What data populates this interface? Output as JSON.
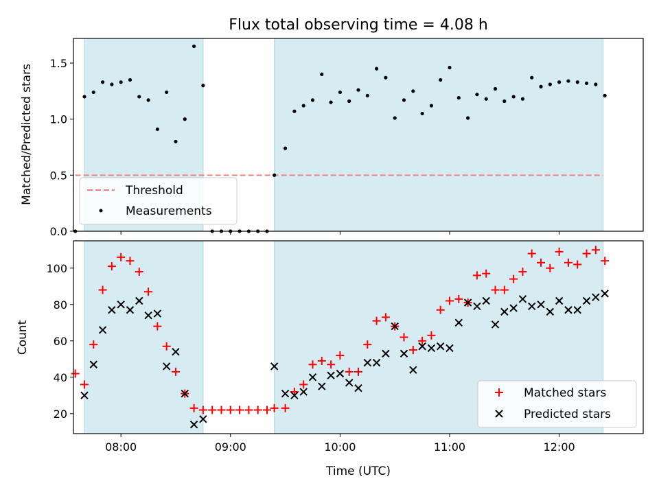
{
  "chart_data": [
    {
      "type": "scatter",
      "title": "Flux total observing time = 4.08 h",
      "xlabel": "",
      "ylabel": "Matched/Predicted stars",
      "xlim": [
        "07:34",
        "12:46"
      ],
      "ylim": [
        0,
        1.72
      ],
      "yticks": [
        0.0,
        0.5,
        1.0,
        1.5
      ],
      "ytick_labels": [
        "0.0",
        "0.5",
        "1.0",
        "1.5"
      ],
      "xticks": [
        "08:00",
        "09:00",
        "10:00",
        "11:00",
        "12:00"
      ],
      "shaded_intervals": [
        [
          "07:40",
          "08:45"
        ],
        [
          "09:24",
          "12:24"
        ]
      ],
      "threshold": {
        "name": "Threshold",
        "value": 0.5,
        "x_range": [
          "07:35",
          "12:24"
        ],
        "color": "#f08080"
      },
      "series": [
        {
          "name": "Measurements",
          "color": "#000000",
          "x": [
            "07:35",
            "07:40",
            "07:45",
            "07:50",
            "07:55",
            "08:00",
            "08:05",
            "08:10",
            "08:15",
            "08:20",
            "08:25",
            "08:30",
            "08:35",
            "08:40",
            "08:45",
            "08:50",
            "08:55",
            "09:00",
            "09:05",
            "09:10",
            "09:15",
            "09:20",
            "09:24",
            "09:30",
            "09:35",
            "09:40",
            "09:45",
            "09:50",
            "09:55",
            "10:00",
            "10:05",
            "10:10",
            "10:15",
            "10:20",
            "10:25",
            "10:30",
            "10:35",
            "10:40",
            "10:45",
            "10:50",
            "10:55",
            "11:00",
            "11:05",
            "11:10",
            "11:15",
            "11:20",
            "11:25",
            "11:30",
            "11:35",
            "11:40",
            "11:45",
            "11:50",
            "11:55",
            "12:00",
            "12:05",
            "12:10",
            "12:15",
            "12:20",
            "12:25"
          ],
          "y": [
            0.0,
            1.2,
            1.24,
            1.33,
            1.31,
            1.33,
            1.35,
            1.2,
            1.17,
            0.91,
            1.24,
            0.8,
            1.0,
            1.65,
            1.3,
            0.0,
            0.0,
            0.0,
            0.0,
            0.0,
            0.0,
            0.0,
            0.5,
            0.74,
            1.07,
            1.12,
            1.17,
            1.4,
            1.15,
            1.24,
            1.16,
            1.26,
            1.21,
            1.45,
            1.37,
            1.01,
            1.17,
            1.25,
            1.05,
            1.12,
            1.35,
            1.46,
            1.19,
            1.01,
            1.22,
            1.18,
            1.27,
            1.16,
            1.2,
            1.18,
            1.37,
            1.29,
            1.31,
            1.33,
            1.34,
            1.33,
            1.32,
            1.31,
            1.21
          ]
        }
      ]
    },
    {
      "type": "scatter",
      "title": "",
      "xlabel": "Time (UTC)",
      "ylabel": "Count",
      "xlim": [
        "07:34",
        "12:46"
      ],
      "ylim": [
        9,
        115
      ],
      "yticks": [
        20,
        40,
        60,
        80,
        100
      ],
      "ytick_labels": [
        "20",
        "40",
        "60",
        "80",
        "100"
      ],
      "xticks": [
        "08:00",
        "09:00",
        "10:00",
        "11:00",
        "12:00"
      ],
      "shaded_intervals": [
        [
          "07:40",
          "08:45"
        ],
        [
          "09:24",
          "12:24"
        ]
      ],
      "series": [
        {
          "name": "Matched stars",
          "marker": "+",
          "color": "#ff0000",
          "x": [
            "07:35",
            "07:40",
            "07:45",
            "07:50",
            "07:55",
            "08:00",
            "08:05",
            "08:10",
            "08:15",
            "08:20",
            "08:25",
            "08:30",
            "08:35",
            "08:40",
            "08:45",
            "08:50",
            "08:55",
            "09:00",
            "09:05",
            "09:10",
            "09:15",
            "09:20",
            "09:24",
            "09:30",
            "09:35",
            "09:40",
            "09:45",
            "09:50",
            "09:55",
            "10:00",
            "10:05",
            "10:10",
            "10:15",
            "10:20",
            "10:25",
            "10:30",
            "10:35",
            "10:40",
            "10:45",
            "10:50",
            "10:55",
            "11:00",
            "11:05",
            "11:10",
            "11:15",
            "11:20",
            "11:25",
            "11:30",
            "11:35",
            "11:40",
            "11:45",
            "11:50",
            "11:55",
            "12:00",
            "12:05",
            "12:10",
            "12:15",
            "12:20",
            "12:25"
          ],
          "y": [
            42,
            36,
            58,
            88,
            101,
            106,
            104,
            98,
            87,
            68,
            57,
            43,
            31,
            23,
            22,
            22,
            22,
            22,
            22,
            22,
            22,
            22,
            23,
            23,
            32,
            36,
            47,
            49,
            47,
            52,
            43,
            43,
            58,
            71,
            73,
            68,
            62,
            55,
            60,
            63,
            77,
            82,
            83,
            81,
            96,
            97,
            88,
            88,
            94,
            98,
            108,
            103,
            100,
            109,
            103,
            102,
            108,
            110,
            104
          ]
        },
        {
          "name": "Predicted stars",
          "marker": "x",
          "color": "#000000",
          "x": [
            "07:40",
            "07:45",
            "07:50",
            "07:55",
            "08:00",
            "08:05",
            "08:10",
            "08:15",
            "08:20",
            "08:25",
            "08:30",
            "08:35",
            "08:40",
            "08:45",
            "09:24",
            "09:30",
            "09:35",
            "09:40",
            "09:45",
            "09:50",
            "09:55",
            "10:00",
            "10:05",
            "10:10",
            "10:15",
            "10:20",
            "10:25",
            "10:30",
            "10:35",
            "10:40",
            "10:45",
            "10:50",
            "10:55",
            "11:00",
            "11:05",
            "11:10",
            "11:15",
            "11:20",
            "11:25",
            "11:30",
            "11:35",
            "11:40",
            "11:45",
            "11:50",
            "11:55",
            "12:00",
            "12:05",
            "12:10",
            "12:15",
            "12:20",
            "12:25"
          ],
          "y": [
            30,
            47,
            66,
            77,
            80,
            77,
            82,
            74,
            75,
            46,
            54,
            31,
            14,
            17,
            46,
            31,
            30,
            32,
            40,
            35,
            41,
            42,
            37,
            34,
            48,
            48,
            53,
            68,
            53,
            44,
            57,
            56,
            57,
            56,
            70,
            81,
            79,
            82,
            69,
            76,
            78,
            83,
            79,
            80,
            76,
            82,
            77,
            77,
            82,
            84,
            86
          ]
        }
      ]
    }
  ]
}
